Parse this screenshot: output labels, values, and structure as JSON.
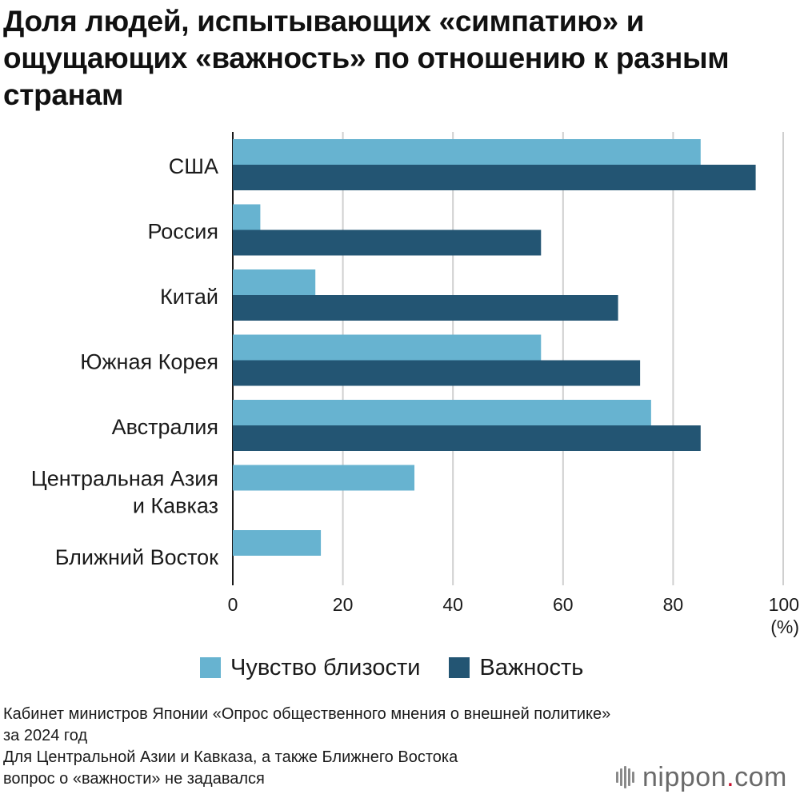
{
  "chart_data": {
    "type": "bar",
    "orientation": "horizontal",
    "title": "Доля людей, испытывающих «симпатию» и ощущающих «важность» по отношению к разным странам",
    "categories": [
      "США",
      "Россия",
      "Китай",
      "Южная Корея",
      "Австралия",
      "Центральная Азия и Кавказ",
      "Ближний Восток"
    ],
    "category_lines": [
      [
        "США"
      ],
      [
        "Россия"
      ],
      [
        "Китай"
      ],
      [
        "Южная Корея"
      ],
      [
        "Австралия"
      ],
      [
        "Центральная Азия",
        "и Кавказ"
      ],
      [
        "Ближний Восток"
      ]
    ],
    "series": [
      {
        "name": "Чувство близости",
        "color": "#67b3d0",
        "values": [
          85,
          5,
          15,
          56,
          76,
          33,
          16
        ]
      },
      {
        "name": "Важность",
        "color": "#235573",
        "values": [
          95,
          56,
          70,
          74,
          85,
          null,
          null
        ]
      }
    ],
    "xlim": [
      0,
      100
    ],
    "xticks": [
      0,
      20,
      40,
      60,
      80,
      100
    ],
    "xunit": "(%)",
    "grid": true,
    "legend_position": "bottom"
  },
  "legend": {
    "items": [
      {
        "label": "Чувство близости",
        "color": "#67b3d0"
      },
      {
        "label": "Важность",
        "color": "#235573"
      }
    ]
  },
  "footnotes": {
    "line1": "Кабинет министров Японии «Опрос общественного мнения о внешней политике»",
    "line2": "за 2024 год",
    "line3": "Для Центральной Азии и Кавказа, а также Ближнего Востока",
    "line4": "вопрос о «важности» не задавался"
  },
  "logo": {
    "name": "nippon",
    "dot": ".",
    "suffix": "com"
  }
}
